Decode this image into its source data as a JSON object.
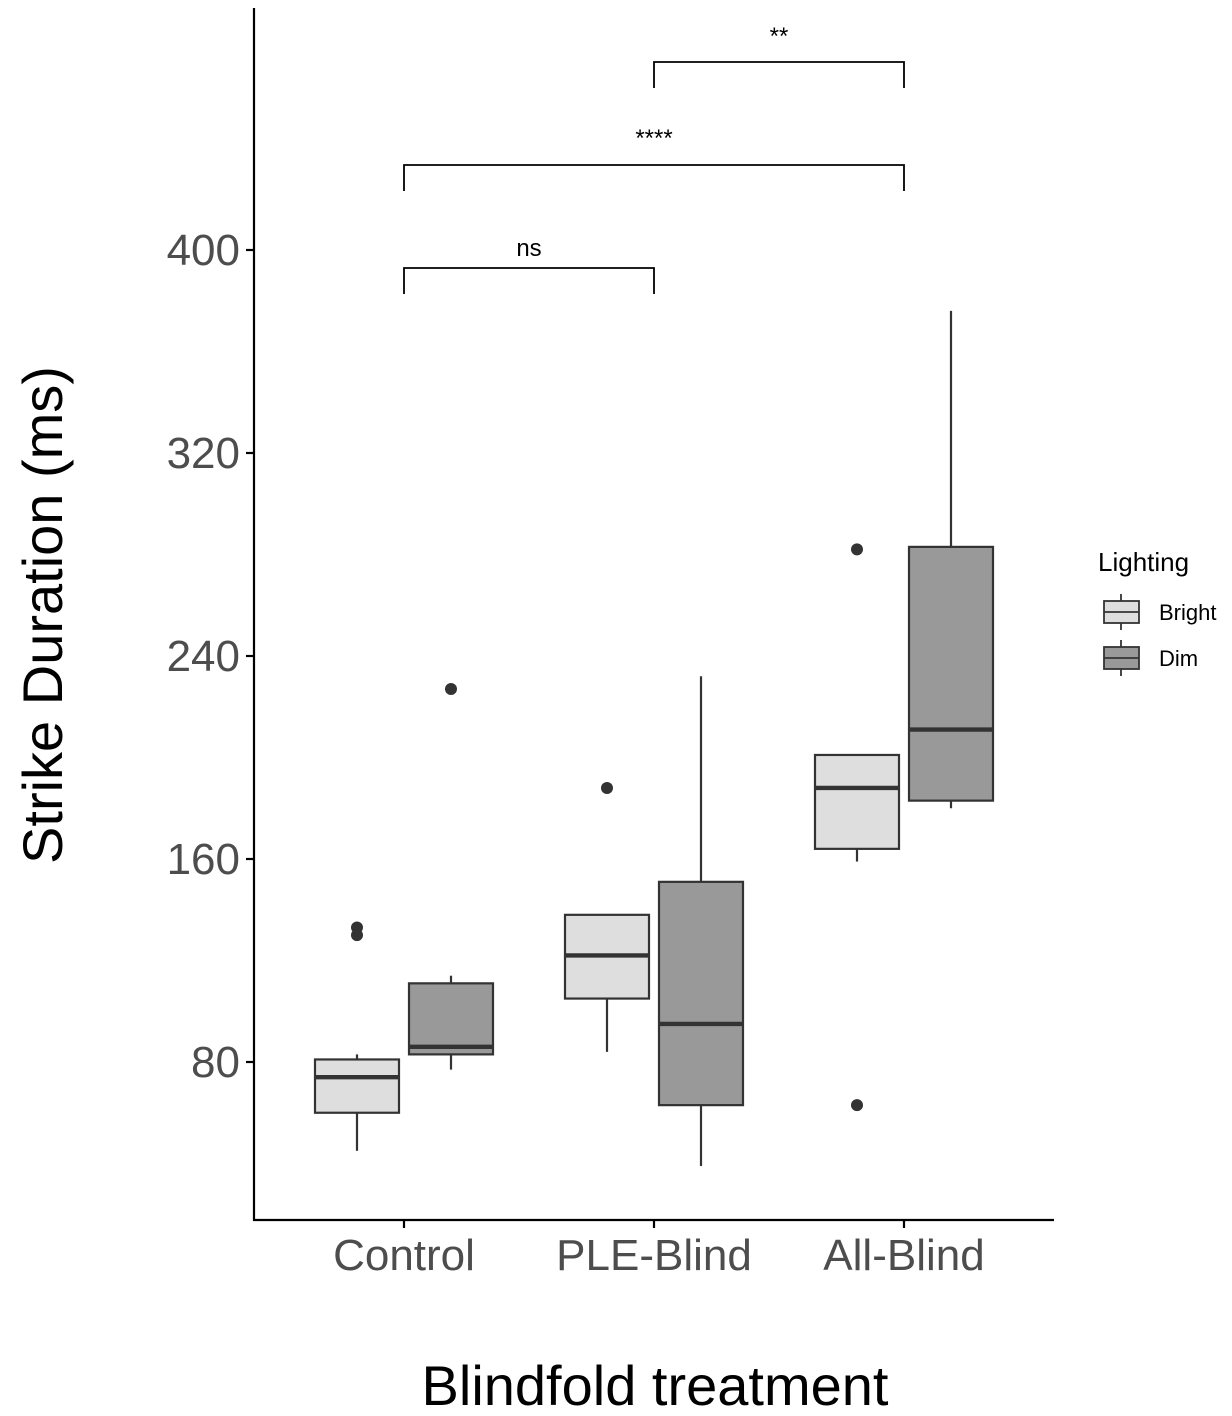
{
  "chart_data": {
    "type": "box",
    "xlabel": "Blindfold treatment",
    "ylabel": "Strike Duration (ms)",
    "categories": [
      "Control",
      "PLE-Blind",
      "All-Blind"
    ],
    "yticks": [
      80,
      160,
      240,
      320,
      400
    ],
    "ylim": [
      18,
      495
    ],
    "grid": false,
    "legend": {
      "title": "Lighting",
      "position": "right",
      "entries": [
        "Bright",
        "Dim"
      ]
    },
    "colors": {
      "Bright": "#dedede",
      "Dim": "#999999",
      "stroke": "#333333",
      "axis": "#000000"
    },
    "series": [
      {
        "name": "Bright",
        "boxes": [
          {
            "category": "Control",
            "whisker_low": 45,
            "q1": 60,
            "median": 74,
            "q3": 81,
            "whisker_high": 83,
            "outliers": [
              130,
              133
            ]
          },
          {
            "category": "PLE-Blind",
            "whisker_low": 84,
            "q1": 105,
            "median": 122,
            "q3": 138,
            "whisker_high": 138,
            "outliers": [
              188
            ]
          },
          {
            "category": "All-Blind",
            "whisker_low": 159,
            "q1": 164,
            "median": 188,
            "q3": 201,
            "whisker_high": 201,
            "outliers": [
              63,
              282
            ]
          }
        ]
      },
      {
        "name": "Dim",
        "boxes": [
          {
            "category": "Control",
            "whisker_low": 77,
            "q1": 83,
            "median": 86,
            "q3": 111,
            "whisker_high": 114,
            "outliers": [
              227
            ]
          },
          {
            "category": "PLE-Blind",
            "whisker_low": 39,
            "q1": 63,
            "median": 95,
            "q3": 151,
            "whisker_high": 232,
            "outliers": []
          },
          {
            "category": "All-Blind",
            "whisker_low": 180,
            "q1": 183,
            "median": 211,
            "q3": 283,
            "whisker_high": 376,
            "outliers": []
          }
        ]
      }
    ],
    "comparisons": [
      {
        "from": "Control",
        "to": "PLE-Blind",
        "label": "ns"
      },
      {
        "from": "Control",
        "to": "All-Blind",
        "label": "****"
      },
      {
        "from": "PLE-Blind",
        "to": "All-Blind",
        "label": "**"
      }
    ]
  }
}
